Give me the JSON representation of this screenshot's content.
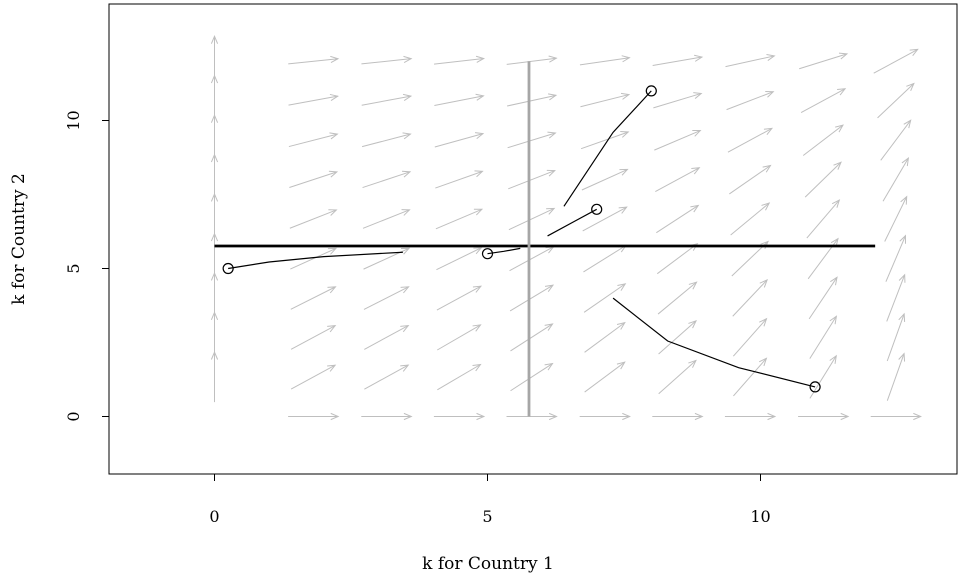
{
  "chart_data": {
    "type": "vector-field",
    "xlabel": "k for Country 1",
    "ylabel": "k for Country 2",
    "xlim": [
      -1.9,
      13.9
    ],
    "ylim": [
      -1.9,
      13.9
    ],
    "xticks": [
      0,
      5,
      10
    ],
    "yticks": [
      0,
      5,
      10
    ],
    "steady_state": [
      5.76,
      5.76
    ],
    "field_grid": {
      "x": [
        0,
        1.33,
        2.67,
        4.0,
        5.33,
        6.67,
        8.0,
        9.33,
        10.67,
        12.0
      ],
      "y": [
        0,
        1.33,
        2.67,
        4.0,
        5.33,
        6.67,
        8.0,
        9.33,
        10.67,
        12.0
      ]
    },
    "reference_lines": [
      {
        "name": "",
        "color": "#000000",
        "points": [
          [
            0,
            5.76
          ],
          [
            12.1,
            5.76
          ]
        ]
      },
      {
        "name": "",
        "color": "#a6a6a6",
        "points": [
          [
            5.76,
            0
          ],
          [
            5.76,
            12.0
          ]
        ]
      }
    ],
    "trajectories": [
      {
        "start": [
          0.25,
          5.0
        ],
        "points": [
          [
            0.25,
            5.0
          ],
          [
            1.0,
            5.22
          ],
          [
            2.0,
            5.4
          ],
          [
            3.45,
            5.55
          ]
        ]
      },
      {
        "start": [
          5.0,
          5.5
        ],
        "points": [
          [
            5.0,
            5.5
          ],
          [
            5.3,
            5.58
          ],
          [
            5.6,
            5.68
          ]
        ]
      },
      {
        "start": [
          7.0,
          7.0
        ],
        "points": [
          [
            7.0,
            7.0
          ],
          [
            6.6,
            6.6
          ],
          [
            6.1,
            6.1
          ]
        ]
      },
      {
        "start": [
          8.0,
          11.0
        ],
        "points": [
          [
            8.0,
            11.0
          ],
          [
            7.3,
            9.6
          ],
          [
            6.4,
            7.1
          ]
        ]
      },
      {
        "start": [
          11.0,
          1.0
        ],
        "points": [
          [
            11.0,
            1.0
          ],
          [
            9.6,
            1.65
          ],
          [
            8.3,
            2.55
          ],
          [
            7.3,
            4.0
          ]
        ]
      }
    ],
    "colors": {
      "field": "#bfbfbf",
      "trajectory": "#000000",
      "frame": "#000000"
    }
  }
}
